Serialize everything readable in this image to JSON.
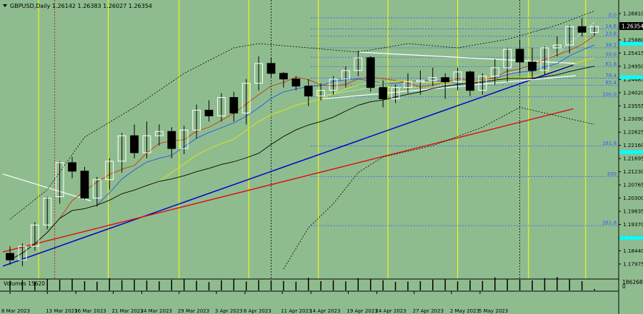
{
  "header": {
    "symbol_info": "GBPUSD,Daily   1.26142  1.26383  1.26027  1.26354"
  },
  "volume_panel": {
    "label": "Volumes 15620",
    "max_label": "186268",
    "min_label": "0"
  },
  "colors": {
    "background": "#8fbc8f",
    "bull_candle": "#ffffff",
    "bear_candle": "#000000",
    "ma_red": "#cc3300",
    "ma_blue": "#2255ee",
    "ma_yellow": "#e8e800",
    "ma_black": "#000000",
    "trend_blue": "#0000cc",
    "trend_red": "#dd1111",
    "fib_line": "#3355ff",
    "vline_yellow": "#ffff00"
  },
  "chart_data": {
    "type": "candlestick",
    "symbol": "GBPUSD",
    "timeframe": "Daily",
    "last_bar": {
      "open": 1.26142,
      "high": 1.26383,
      "low": 1.26027,
      "close": 1.26354
    },
    "current_price_label": "1.26354",
    "ylim": [
      1.1752,
      1.2691
    ],
    "price_ticks": [
      "1.26810",
      "1.26354",
      "1.25880",
      "1.25415",
      "1.24950",
      "1.24485",
      "1.24020",
      "1.23555",
      "1.23090",
      "1.22625",
      "1.22160",
      "1.21695",
      "1.21230",
      "1.20765",
      "1.20300",
      "1.19835",
      "1.19370",
      "1.18905",
      "1.18440",
      "1.17975"
    ],
    "date_labels": [
      "8 Mar 2023",
      "13 Mar 2023",
      "16 Mar 2023",
      "21 Mar 2023",
      "24 Mar 2023",
      "29 Mar 2023",
      "3 Apr 2023",
      "6 Apr 2023",
      "11 Apr 2023",
      "14 Apr 2023",
      "19 Apr 2023",
      "24 Apr 2023",
      "27 Apr 2023",
      "2 May 2023",
      "5 May 2023"
    ],
    "fib_levels": [
      {
        "label": "0.0",
        "price": 1.2666
      },
      {
        "label": "14.6",
        "price": 1.2627
      },
      {
        "label": "23.6",
        "price": 1.2601
      },
      {
        "label": "38.2",
        "price": 1.256
      },
      {
        "label": "50.0",
        "price": 1.2527
      },
      {
        "label": "61.8",
        "price": 1.2494
      },
      {
        "label": "76.4",
        "price": 1.2453
      },
      {
        "label": "85.4",
        "price": 1.2428
      },
      {
        "label": "100.0",
        "price": 1.2387
      },
      {
        "label": "161.8",
        "price": 1.2214
      },
      {
        "label": "200",
        "price": 1.2106
      },
      {
        "label": "261.8",
        "price": 1.1933
      }
    ],
    "candles": [
      {
        "o": 1.1835,
        "h": 1.186,
        "l": 1.1795,
        "c": 1.1812
      },
      {
        "o": 1.1812,
        "h": 1.187,
        "l": 1.179,
        "c": 1.186
      },
      {
        "o": 1.186,
        "h": 1.1945,
        "l": 1.1845,
        "c": 1.1935
      },
      {
        "o": 1.1935,
        "h": 1.2035,
        "l": 1.192,
        "c": 1.203
      },
      {
        "o": 1.2035,
        "h": 1.216,
        "l": 1.201,
        "c": 1.2155
      },
      {
        "o": 1.2155,
        "h": 1.2175,
        "l": 1.21,
        "c": 1.2125
      },
      {
        "o": 1.2125,
        "h": 1.214,
        "l": 1.2025,
        "c": 1.203
      },
      {
        "o": 1.203,
        "h": 1.2105,
        "l": 1.2,
        "c": 1.2095
      },
      {
        "o": 1.2095,
        "h": 1.217,
        "l": 1.206,
        "c": 1.216
      },
      {
        "o": 1.216,
        "h": 1.226,
        "l": 1.212,
        "c": 1.225
      },
      {
        "o": 1.225,
        "h": 1.229,
        "l": 1.217,
        "c": 1.219
      },
      {
        "o": 1.219,
        "h": 1.23,
        "l": 1.217,
        "c": 1.225
      },
      {
        "o": 1.225,
        "h": 1.229,
        "l": 1.2215,
        "c": 1.2265
      },
      {
        "o": 1.2265,
        "h": 1.228,
        "l": 1.217,
        "c": 1.2205
      },
      {
        "o": 1.2205,
        "h": 1.2285,
        "l": 1.2185,
        "c": 1.227
      },
      {
        "o": 1.227,
        "h": 1.236,
        "l": 1.224,
        "c": 1.234
      },
      {
        "o": 1.234,
        "h": 1.2375,
        "l": 1.23,
        "c": 1.232
      },
      {
        "o": 1.232,
        "h": 1.24,
        "l": 1.23,
        "c": 1.2385
      },
      {
        "o": 1.2385,
        "h": 1.2405,
        "l": 1.23,
        "c": 1.233
      },
      {
        "o": 1.233,
        "h": 1.245,
        "l": 1.229,
        "c": 1.2435
      },
      {
        "o": 1.2435,
        "h": 1.253,
        "l": 1.241,
        "c": 1.2505
      },
      {
        "o": 1.2505,
        "h": 1.2525,
        "l": 1.2455,
        "c": 1.247
      },
      {
        "o": 1.247,
        "h": 1.2475,
        "l": 1.242,
        "c": 1.245
      },
      {
        "o": 1.245,
        "h": 1.246,
        "l": 1.241,
        "c": 1.2425
      },
      {
        "o": 1.2425,
        "h": 1.245,
        "l": 1.2355,
        "c": 1.239
      },
      {
        "o": 1.239,
        "h": 1.2435,
        "l": 1.2375,
        "c": 1.241
      },
      {
        "o": 1.241,
        "h": 1.246,
        "l": 1.2395,
        "c": 1.245
      },
      {
        "o": 1.245,
        "h": 1.2495,
        "l": 1.242,
        "c": 1.248
      },
      {
        "o": 1.248,
        "h": 1.255,
        "l": 1.246,
        "c": 1.2525
      },
      {
        "o": 1.2525,
        "h": 1.253,
        "l": 1.2405,
        "c": 1.242
      },
      {
        "o": 1.242,
        "h": 1.2445,
        "l": 1.235,
        "c": 1.238
      },
      {
        "o": 1.238,
        "h": 1.243,
        "l": 1.2365,
        "c": 1.242
      },
      {
        "o": 1.242,
        "h": 1.247,
        "l": 1.24,
        "c": 1.244
      },
      {
        "o": 1.244,
        "h": 1.248,
        "l": 1.2395,
        "c": 1.2445
      },
      {
        "o": 1.2445,
        "h": 1.249,
        "l": 1.2425,
        "c": 1.2455
      },
      {
        "o": 1.2455,
        "h": 1.247,
        "l": 1.238,
        "c": 1.244
      },
      {
        "o": 1.244,
        "h": 1.249,
        "l": 1.241,
        "c": 1.2475
      },
      {
        "o": 1.2475,
        "h": 1.248,
        "l": 1.239,
        "c": 1.241
      },
      {
        "o": 1.241,
        "h": 1.247,
        "l": 1.2395,
        "c": 1.246
      },
      {
        "o": 1.246,
        "h": 1.252,
        "l": 1.243,
        "c": 1.249
      },
      {
        "o": 1.249,
        "h": 1.256,
        "l": 1.244,
        "c": 1.2555
      },
      {
        "o": 1.2555,
        "h": 1.259,
        "l": 1.247,
        "c": 1.251
      },
      {
        "o": 1.251,
        "h": 1.256,
        "l": 1.2455,
        "c": 1.248
      },
      {
        "o": 1.248,
        "h": 1.2565,
        "l": 1.2465,
        "c": 1.256
      },
      {
        "o": 1.256,
        "h": 1.26,
        "l": 1.253,
        "c": 1.257
      },
      {
        "o": 1.257,
        "h": 1.264,
        "l": 1.254,
        "c": 1.2635
      },
      {
        "o": 1.2635,
        "h": 1.2665,
        "l": 1.26,
        "c": 1.2615
      },
      {
        "o": 1.2614,
        "h": 1.2638,
        "l": 1.2603,
        "c": 1.2635
      }
    ],
    "volumes": [
      0.52,
      0.55,
      0.48,
      0.6,
      0.58,
      0.62,
      0.5,
      0.47,
      0.66,
      0.55,
      0.58,
      0.53,
      0.49,
      0.57,
      0.6,
      0.52,
      0.45,
      0.55,
      0.63,
      0.48,
      0.56,
      0.54,
      0.51,
      0.47,
      0.68,
      0.5,
      0.55,
      0.49,
      0.66,
      0.6,
      0.55,
      0.46,
      0.48,
      0.5,
      0.58,
      0.63,
      0.49,
      0.55,
      0.51,
      0.7,
      0.62,
      0.58,
      0.54,
      0.66,
      0.72,
      0.59,
      0.5,
      0.08
    ],
    "moving_averages": [
      {
        "color": "#cc3300",
        "period": 5
      },
      {
        "color": "#2255ee",
        "period": 8
      },
      {
        "color": "#e8e800",
        "period": 13
      },
      {
        "color": "#000000",
        "period": 21
      }
    ]
  }
}
